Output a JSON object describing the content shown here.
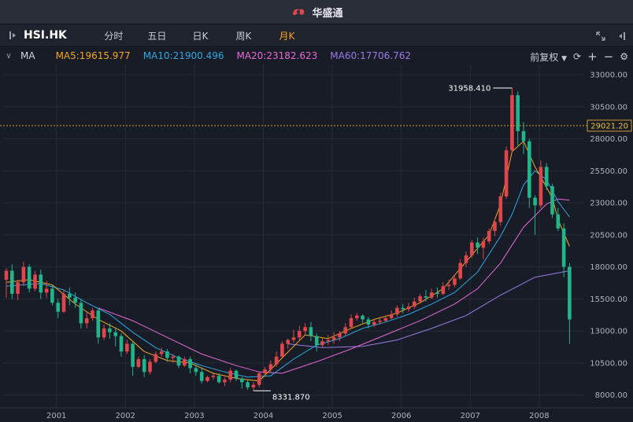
{
  "app": {
    "title": "华盛通"
  },
  "toolbar": {
    "symbol": "HSI.HK",
    "periods": [
      "分时",
      "五日",
      "日K",
      "周K",
      "月K"
    ],
    "active_period": 4
  },
  "ma_bar": {
    "label": "MA",
    "items": [
      {
        "text": "MA5:19615.977",
        "color": "#f5a623"
      },
      {
        "text": "MA10:21900.496",
        "color": "#2fa8e0"
      },
      {
        "text": "MA20:23182.623",
        "color": "#e86ad8"
      },
      {
        "text": "MA60:17706.762",
        "color": "#9b7be8"
      }
    ],
    "adjust_label": "前复权"
  },
  "colors": {
    "up": "#e0474c",
    "down": "#22b58a",
    "grid": "#262b37",
    "current_price_line": "#d09a30"
  },
  "chart_data": {
    "type": "candlestick",
    "symbol": "HSI.HK",
    "interval": "monthly",
    "x_tick_labels": [
      "2001",
      "2002",
      "2003",
      "2004",
      "2005",
      "2006",
      "2007",
      "2008"
    ],
    "y_tick_labels": [
      33000,
      30500,
      28000,
      25500,
      23000,
      20500,
      18000,
      15500,
      13000,
      10500,
      8000
    ],
    "ylim": [
      7000,
      33800
    ],
    "current_price": "29021.20",
    "annotations": [
      {
        "text": "31958.410",
        "type": "max"
      },
      {
        "text": "8331.870",
        "type": "min"
      }
    ],
    "candles": [
      [
        17000,
        17700,
        15600,
        17900
      ],
      [
        17700,
        15900,
        15500,
        18200
      ],
      [
        15900,
        16800,
        15400,
        17000
      ],
      [
        16800,
        18000,
        16500,
        18400
      ],
      [
        18000,
        16300,
        16000,
        18200
      ],
      [
        16300,
        17400,
        16100,
        17700
      ],
      [
        17400,
        16000,
        15500,
        17800
      ],
      [
        16000,
        16300,
        15600,
        16900
      ],
      [
        16300,
        15200,
        15000,
        16600
      ],
      [
        15200,
        14500,
        14000,
        15500
      ],
      [
        14500,
        15900,
        14400,
        16200
      ],
      [
        15900,
        15600,
        15000,
        16400
      ],
      [
        15600,
        15200,
        14800,
        16000
      ],
      [
        15200,
        13600,
        13200,
        15500
      ],
      [
        13600,
        14000,
        13200,
        14500
      ],
      [
        14000,
        14600,
        13800,
        14800
      ],
      [
        14600,
        12500,
        12000,
        14800
      ],
      [
        12500,
        13200,
        12300,
        13500
      ],
      [
        13200,
        12900,
        12400,
        13600
      ],
      [
        12900,
        12600,
        11800,
        13300
      ],
      [
        12600,
        11400,
        11000,
        12800
      ],
      [
        11400,
        12000,
        11200,
        12300
      ],
      [
        12000,
        10200,
        9500,
        12200
      ],
      [
        10200,
        10800,
        10100,
        11000
      ],
      [
        10800,
        9800,
        9400,
        11100
      ],
      [
        9800,
        10600,
        9600,
        10800
      ],
      [
        10600,
        11200,
        10500,
        11400
      ],
      [
        11200,
        11400,
        11000,
        11700
      ],
      [
        11400,
        10900,
        10600,
        11600
      ],
      [
        10900,
        11000,
        10500,
        11200
      ],
      [
        11000,
        10300,
        10100,
        11100
      ],
      [
        10300,
        10800,
        10200,
        11000
      ],
      [
        10800,
        10100,
        9700,
        11000
      ],
      [
        10100,
        9800,
        9500,
        10400
      ],
      [
        9800,
        9100,
        8900,
        10100
      ],
      [
        9100,
        9400,
        9000,
        9500
      ],
      [
        9400,
        9500,
        9200,
        9800
      ],
      [
        9500,
        9000,
        8900,
        9700
      ],
      [
        9000,
        9200,
        8700,
        9400
      ],
      [
        9200,
        9900,
        9000,
        10100
      ],
      [
        9900,
        9300,
        9100,
        10000
      ],
      [
        9300,
        9000,
        8500,
        9400
      ],
      [
        9000,
        8600,
        8400,
        9200
      ],
      [
        8600,
        8800,
        8332,
        9000
      ],
      [
        8800,
        9700,
        8600,
        9800
      ],
      [
        9700,
        10000,
        9500,
        10200
      ],
      [
        10000,
        10400,
        9800,
        10700
      ],
      [
        10400,
        11000,
        10200,
        11400
      ],
      [
        11000,
        12000,
        10900,
        12200
      ],
      [
        12000,
        12300,
        11600,
        12400
      ],
      [
        12300,
        12500,
        12100,
        13100
      ],
      [
        12500,
        13000,
        12300,
        13400
      ],
      [
        13000,
        13300,
        12700,
        13600
      ],
      [
        13300,
        12600,
        12200,
        13700
      ],
      [
        12600,
        11900,
        11400,
        12800
      ],
      [
        11900,
        12200,
        11700,
        12500
      ],
      [
        12200,
        12300,
        11900,
        12700
      ],
      [
        12300,
        12500,
        12000,
        12900
      ],
      [
        12500,
        12800,
        12200,
        13000
      ],
      [
        12800,
        13300,
        12600,
        13600
      ],
      [
        13300,
        14000,
        13200,
        14300
      ],
      [
        14000,
        14200,
        13800,
        14400
      ],
      [
        14200,
        13900,
        13600,
        14300
      ],
      [
        13900,
        13500,
        13200,
        14100
      ],
      [
        13500,
        13700,
        13300,
        13900
      ],
      [
        13700,
        13800,
        13500,
        14100
      ],
      [
        13800,
        14000,
        13700,
        14200
      ],
      [
        14000,
        14300,
        13900,
        14600
      ],
      [
        14300,
        14800,
        14100,
        15000
      ],
      [
        14800,
        14700,
        14400,
        15100
      ],
      [
        14700,
        14900,
        14500,
        15200
      ],
      [
        14900,
        15300,
        14700,
        15600
      ],
      [
        15300,
        15700,
        15200,
        15900
      ],
      [
        15700,
        15600,
        15300,
        16200
      ],
      [
        15600,
        16000,
        15500,
        16300
      ],
      [
        16000,
        15900,
        15600,
        16400
      ],
      [
        15900,
        16500,
        15800,
        16800
      ],
      [
        16500,
        16600,
        16200,
        17000
      ],
      [
        16600,
        17100,
        16400,
        17400
      ],
      [
        17100,
        18300,
        17000,
        18600
      ],
      [
        18300,
        18900,
        18000,
        19200
      ],
      [
        18900,
        19900,
        18700,
        20100
      ],
      [
        19900,
        19500,
        19000,
        20300
      ],
      [
        19500,
        20000,
        18600,
        20300
      ],
      [
        20000,
        20800,
        19800,
        21000
      ],
      [
        20800,
        21500,
        20400,
        21800
      ],
      [
        21500,
        23500,
        21200,
        23800
      ],
      [
        23500,
        27100,
        23300,
        27400
      ],
      [
        27100,
        31400,
        27000,
        31958
      ],
      [
        31400,
        28600,
        27500,
        31700
      ],
      [
        28600,
        27800,
        26800,
        29300
      ],
      [
        27800,
        23400,
        22600,
        28000
      ],
      [
        23400,
        22800,
        20500,
        23600
      ],
      [
        22800,
        25800,
        22600,
        26300
      ],
      [
        25800,
        24300,
        24000,
        26100
      ],
      [
        24300,
        22100,
        21800,
        24500
      ],
      [
        22100,
        21000,
        20800,
        22600
      ],
      [
        21000,
        18000,
        17200,
        21400
      ],
      [
        18000,
        13900,
        12000,
        18300
      ]
    ],
    "ma5": [
      [
        0,
        16800
      ],
      [
        4,
        17000
      ],
      [
        8,
        16600
      ],
      [
        12,
        15100
      ],
      [
        16,
        13900
      ],
      [
        20,
        13000
      ],
      [
        24,
        11400
      ],
      [
        28,
        10700
      ],
      [
        32,
        10500
      ],
      [
        36,
        9700
      ],
      [
        40,
        9300
      ],
      [
        44,
        9100
      ],
      [
        48,
        10900
      ],
      [
        52,
        12700
      ],
      [
        56,
        12400
      ],
      [
        60,
        13200
      ],
      [
        64,
        13900
      ],
      [
        68,
        14400
      ],
      [
        72,
        15200
      ],
      [
        76,
        16300
      ],
      [
        80,
        18400
      ],
      [
        84,
        20500
      ],
      [
        86,
        22900
      ],
      [
        88,
        27000
      ],
      [
        90,
        27800
      ],
      [
        92,
        25800
      ],
      [
        95,
        23400
      ],
      [
        96,
        21700
      ],
      [
        98,
        19600
      ]
    ],
    "ma10": [
      [
        0,
        16500
      ],
      [
        6,
        16700
      ],
      [
        10,
        16200
      ],
      [
        14,
        15200
      ],
      [
        18,
        14300
      ],
      [
        22,
        12900
      ],
      [
        26,
        11700
      ],
      [
        30,
        10900
      ],
      [
        34,
        10300
      ],
      [
        38,
        9800
      ],
      [
        42,
        9400
      ],
      [
        46,
        9500
      ],
      [
        50,
        10800
      ],
      [
        54,
        11900
      ],
      [
        58,
        12400
      ],
      [
        62,
        13200
      ],
      [
        66,
        13700
      ],
      [
        70,
        14300
      ],
      [
        74,
        15100
      ],
      [
        78,
        16000
      ],
      [
        82,
        17600
      ],
      [
        86,
        20400
      ],
      [
        88,
        22100
      ],
      [
        90,
        24400
      ],
      [
        92,
        25500
      ],
      [
        94,
        24800
      ],
      [
        96,
        23100
      ],
      [
        98,
        21900
      ]
    ],
    "ma20": [
      [
        16,
        14800
      ],
      [
        22,
        13800
      ],
      [
        28,
        12500
      ],
      [
        34,
        11200
      ],
      [
        40,
        10300
      ],
      [
        44,
        9800
      ],
      [
        48,
        9700
      ],
      [
        54,
        10600
      ],
      [
        60,
        11600
      ],
      [
        66,
        12700
      ],
      [
        72,
        13800
      ],
      [
        78,
        15100
      ],
      [
        82,
        16300
      ],
      [
        86,
        18300
      ],
      [
        90,
        21100
      ],
      [
        94,
        22900
      ],
      [
        96,
        23300
      ],
      [
        98,
        23200
      ]
    ],
    "ma60": [
      [
        49,
        12000
      ],
      [
        55,
        11700
      ],
      [
        62,
        11800
      ],
      [
        68,
        12300
      ],
      [
        74,
        13200
      ],
      [
        80,
        14200
      ],
      [
        86,
        15800
      ],
      [
        92,
        17200
      ],
      [
        98,
        17700
      ]
    ]
  }
}
